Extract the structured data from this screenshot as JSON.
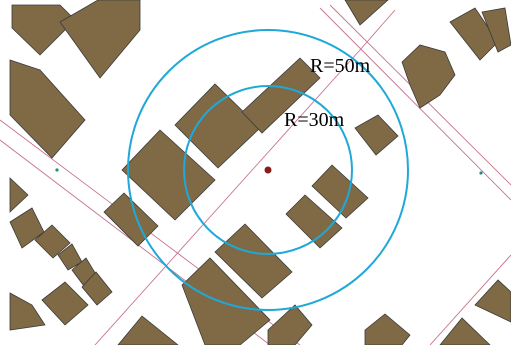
{
  "map": {
    "center_marker": {
      "color": "#8b1a1a"
    },
    "buffer_color": "#1fa8d8",
    "road_color": "#c8728a",
    "building_color": "#7f6a45",
    "building_outline": "#3a3a3a",
    "buffers": [
      {
        "radius_m": 50,
        "label": "R=50m"
      },
      {
        "radius_m": 30,
        "label": "R=30m"
      }
    ]
  }
}
